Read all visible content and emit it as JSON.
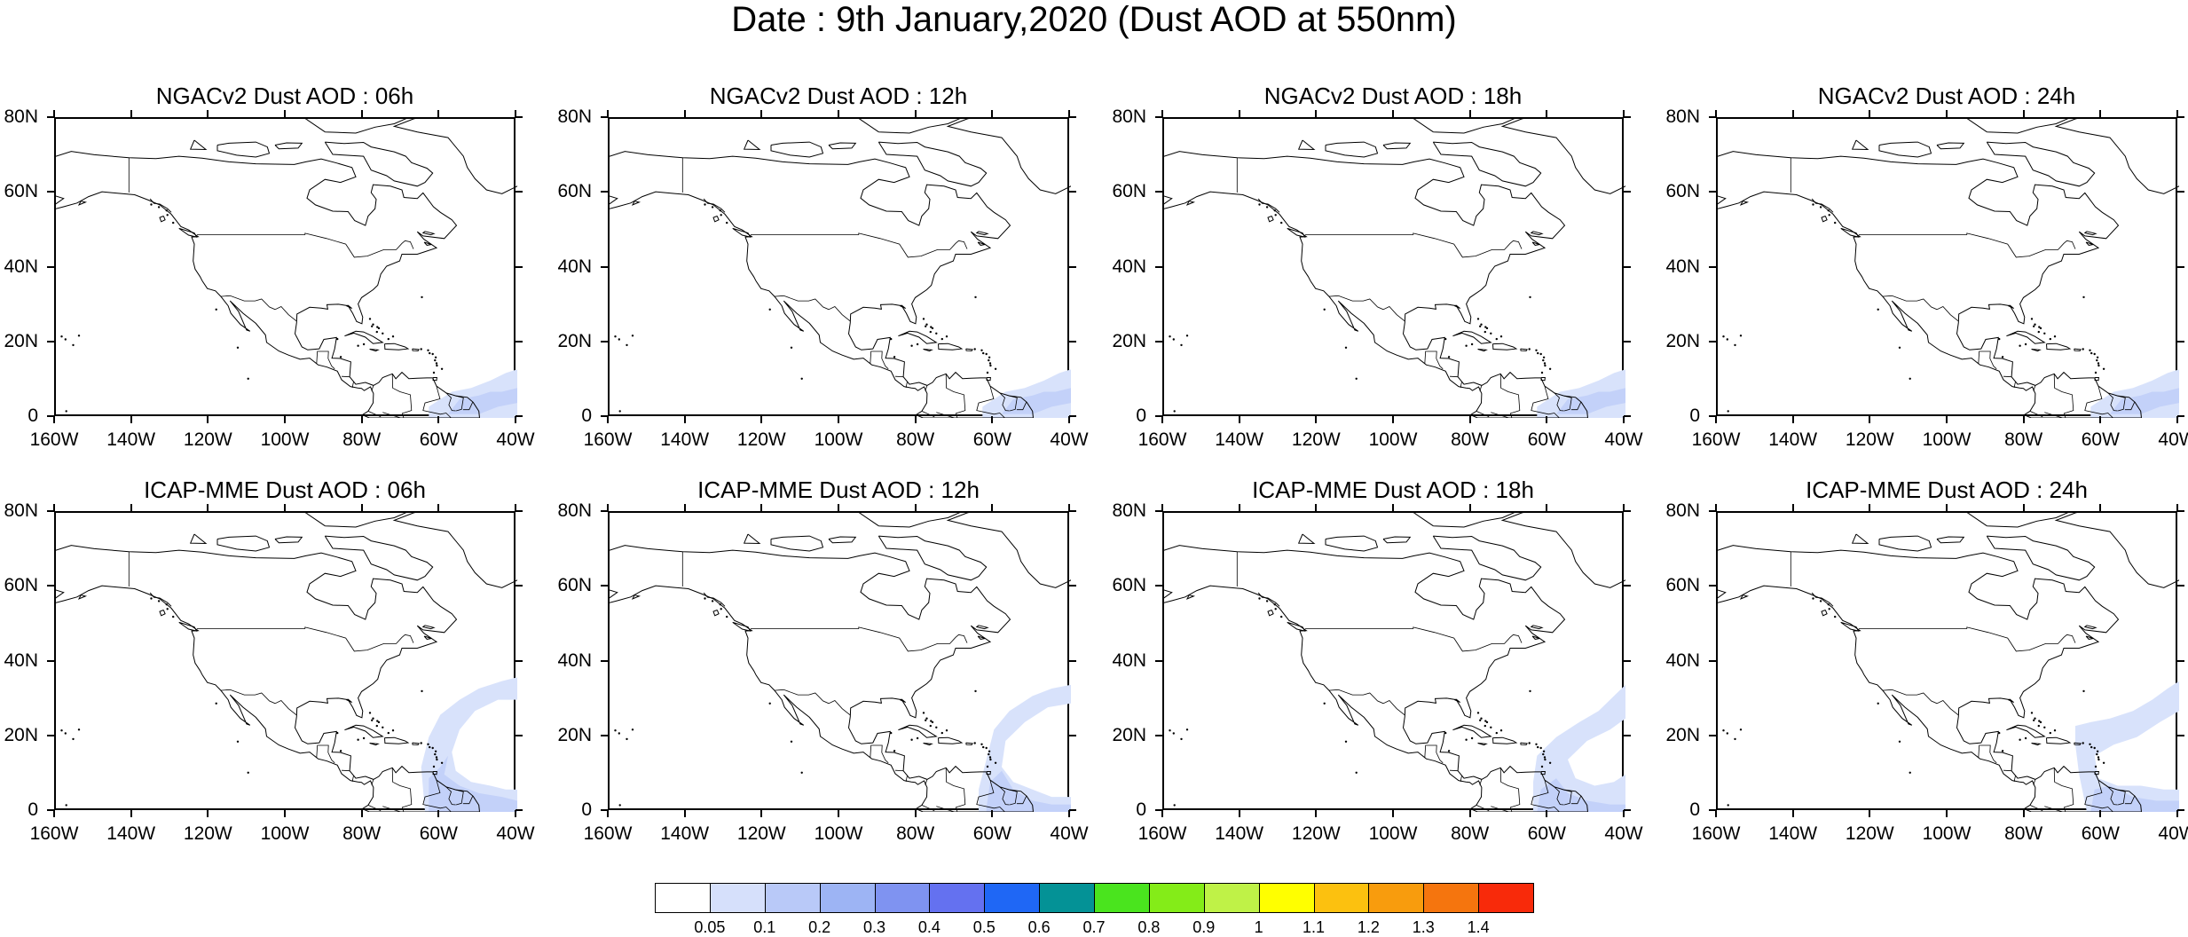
{
  "title": "Date : 9th January,2020 (Dust AOD at 550nm)",
  "lat_labels": [
    "80N",
    "60N",
    "40N",
    "20N",
    "0"
  ],
  "lon_labels": [
    "160W",
    "140W",
    "120W",
    "100W",
    "80W",
    "60W",
    "40W"
  ],
  "map_extent": {
    "lon": [
      -160,
      -40
    ],
    "lat": [
      0,
      80
    ]
  },
  "coastline_color": "#000000",
  "panels": [
    {
      "title": "NGACv2 Dust AOD : 06h",
      "plume": "ngac"
    },
    {
      "title": "NGACv2 Dust AOD : 12h",
      "plume": "ngac"
    },
    {
      "title": "NGACv2 Dust AOD : 18h",
      "plume": "ngac"
    },
    {
      "title": "NGACv2 Dust AOD : 24h",
      "plume": "ngac"
    },
    {
      "title": "ICAP-MME Dust AOD : 06h",
      "plume": "icap06"
    },
    {
      "title": "ICAP-MME Dust AOD : 12h",
      "plume": "icap12"
    },
    {
      "title": "ICAP-MME Dust AOD : 18h",
      "plume": "icap18"
    },
    {
      "title": "ICAP-MME Dust AOD : 24h",
      "plume": "icap24"
    }
  ],
  "colorbar": {
    "colors": [
      "#ffffff",
      "#d6e0fb",
      "#b9c9f8",
      "#9db4f4",
      "#7f93f1",
      "#6471f0",
      "#1f67f5",
      "#049296",
      "#4ae41e",
      "#84ec18",
      "#bff247",
      "#ffff00",
      "#fcc10f",
      "#f89c0d",
      "#f5750e",
      "#f82a0a"
    ],
    "labels": [
      "0.05",
      "0.1",
      "0.2",
      "0.3",
      "0.4",
      "0.5",
      "0.6",
      "0.7",
      "0.8",
      "0.9",
      "1",
      "1.1",
      "1.2",
      "1.3",
      "1.4"
    ]
  },
  "plume_colors": {
    "light": "#d8e2fb",
    "medium": "#c3d1f9"
  }
}
